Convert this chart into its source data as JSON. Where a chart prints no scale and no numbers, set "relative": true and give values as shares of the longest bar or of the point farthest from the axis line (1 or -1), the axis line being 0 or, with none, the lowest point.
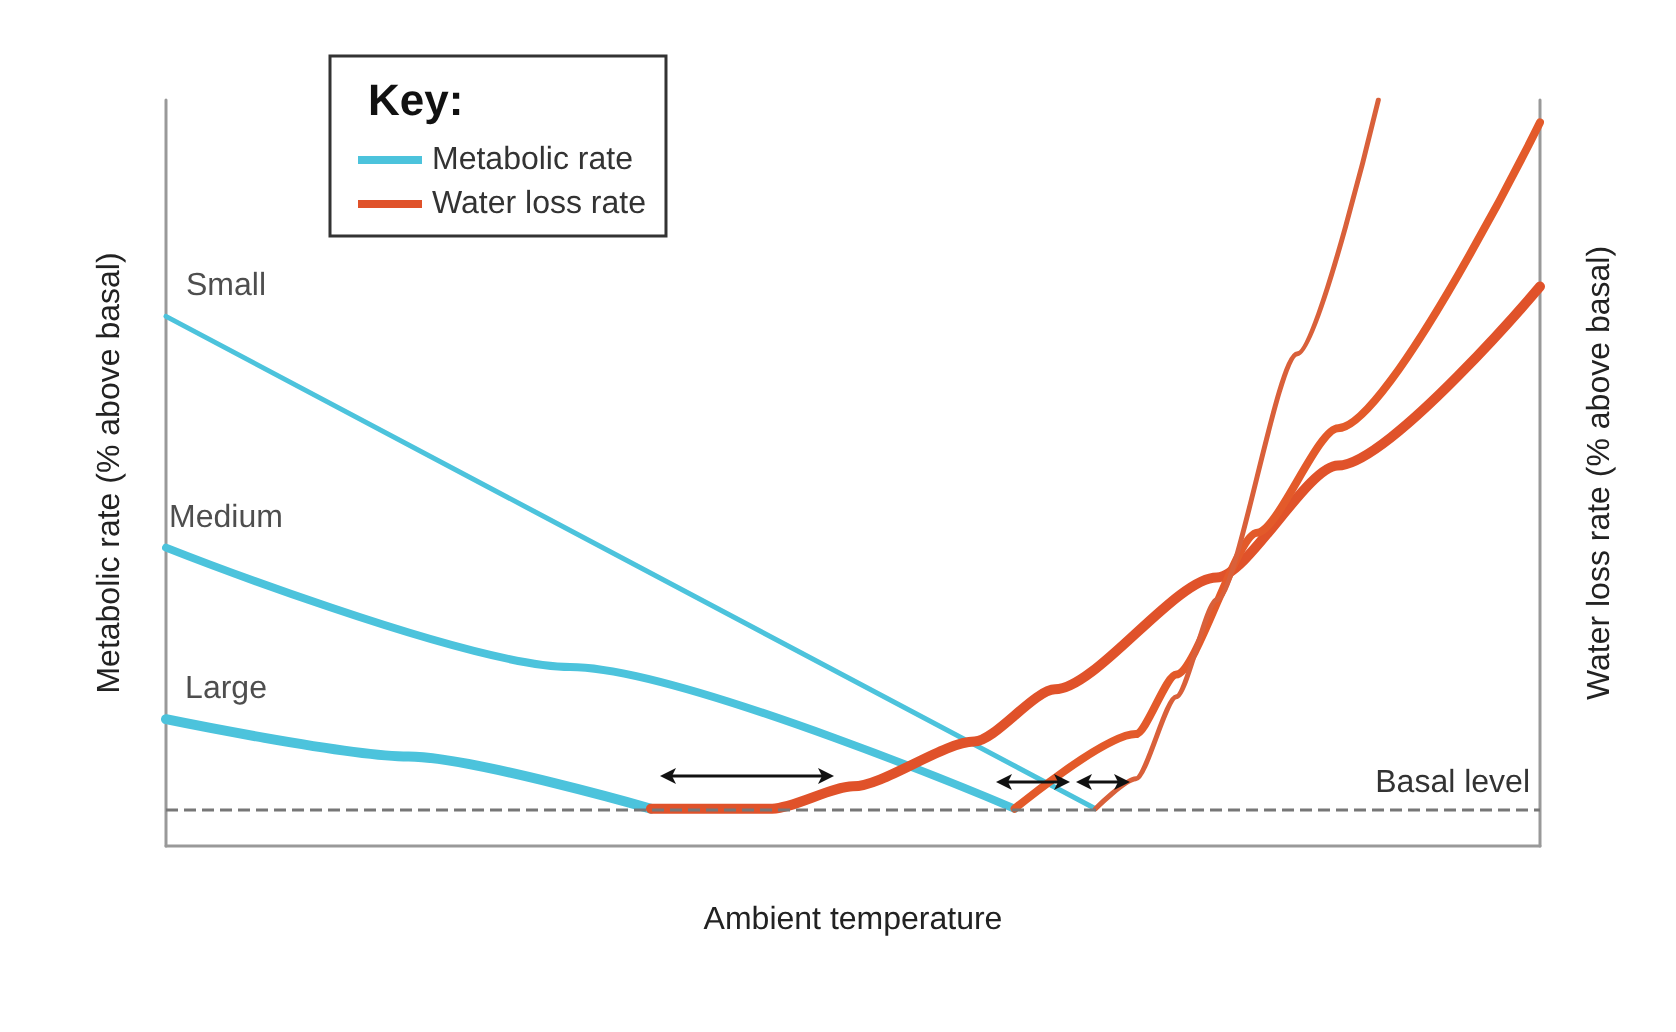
{
  "chart_data": {
    "type": "line",
    "relative": true,
    "xlabel": "Ambient temperature",
    "ylabel": "Metabolic rate (% above basal)",
    "y2label": "Water loss rate (% above basal)",
    "legend_title": "Key:",
    "legend": "top left",
    "marker": "none",
    "line_style": "solid",
    "grid": false,
    "categories": [
      null,
      null,
      null,
      null,
      null,
      null,
      null,
      null,
      null,
      null,
      null,
      null,
      null,
      null,
      null,
      null,
      null,
      null,
      null,
      null,
      null,
      null,
      null,
      null,
      null,
      null,
      null,
      null,
      null,
      null,
      null,
      null,
      null,
      null,
      null
    ],
    "series": [
      {
        "name": "Metabolic rate",
        "color": "#4cc3dc",
        "values": [
          0.17,
          null,
          null,
          null,
          null,
          null,
          0.12,
          null,
          null,
          null,
          null,
          null,
          0.05,
          null,
          null,
          null,
          null,
          null,
          null,
          null,
          null,
          null,
          null,
          null,
          null,
          null,
          null,
          null,
          null,
          null,
          null,
          null,
          null,
          null,
          null
        ]
      },
      {
        "color": "#4cc3dc",
        "values": [
          0.4,
          null,
          null,
          null,
          null,
          null,
          null,
          null,
          null,
          null,
          0.24,
          null,
          null,
          null,
          null,
          null,
          null,
          null,
          null,
          null,
          null,
          0.05,
          null,
          null,
          null,
          null,
          null,
          null,
          null,
          null,
          null,
          null,
          null,
          null,
          null
        ]
      },
      {
        "color": "#4cc3dc",
        "values": [
          0.71,
          null,
          null,
          null,
          null,
          null,
          null,
          null,
          null,
          null,
          null,
          null,
          null,
          null,
          null,
          null,
          null,
          null,
          null,
          null,
          null,
          null,
          null,
          0.05,
          null,
          null,
          null,
          null,
          null,
          null,
          null,
          null,
          null,
          null,
          null
        ]
      },
      {
        "name": "Water loss rate",
        "color": "#e0522a",
        "values": [
          null,
          null,
          null,
          null,
          null,
          null,
          null,
          null,
          null,
          null,
          null,
          null,
          0.05,
          null,
          null,
          0.05,
          null,
          0.08,
          null,
          null,
          0.14,
          null,
          0.21,
          null,
          null,
          null,
          0.36,
          null,
          null,
          0.51,
          null,
          null,
          null,
          null,
          0.75
        ]
      },
      {
        "color": "#e35a2a",
        "values": [
          null,
          null,
          null,
          null,
          null,
          null,
          null,
          null,
          null,
          null,
          null,
          null,
          null,
          null,
          null,
          null,
          null,
          null,
          null,
          null,
          null,
          0.05,
          null,
          null,
          0.15,
          0.23,
          null,
          0.42,
          null,
          0.56,
          null,
          null,
          null,
          null,
          0.97
        ]
      },
      {
        "color": "#d9603a",
        "values": [
          null,
          null,
          null,
          null,
          null,
          null,
          null,
          null,
          null,
          null,
          null,
          null,
          null,
          null,
          null,
          null,
          null,
          null,
          null,
          null,
          null,
          null,
          null,
          0.05,
          0.09,
          0.2,
          0.33,
          null,
          0.66,
          null,
          1.0,
          null,
          null,
          null,
          null
        ]
      }
    ],
    "annotations": [
      "Large",
      "Medium",
      "Small"
    ],
    "ref_lines": [
      {
        "axis": "y",
        "value": 0.05,
        "label": "Basal level",
        "color": "#777777",
        "line_style": "dashed"
      }
    ]
  }
}
